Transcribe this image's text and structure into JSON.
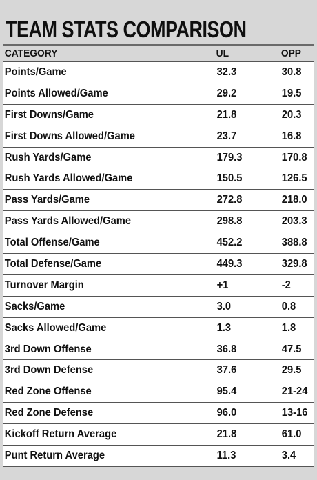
{
  "title": "TEAM STATS COMPARISON",
  "columns": [
    "CATEGORY",
    "UL",
    "OPP"
  ],
  "rows": [
    {
      "category": "Points/Game",
      "ul": "32.3",
      "opp": "30.8"
    },
    {
      "category": "Points Allowed/Game",
      "ul": "29.2",
      "opp": "19.5"
    },
    {
      "category": "First Downs/Game",
      "ul": "21.8",
      "opp": "20.3"
    },
    {
      "category": "First Downs Allowed/Game",
      "ul": "23.7",
      "opp": "16.8"
    },
    {
      "category": "Rush Yards/Game",
      "ul": "179.3",
      "opp": "170.8"
    },
    {
      "category": "Rush Yards Allowed/Game",
      "ul": "150.5",
      "opp": "126.5"
    },
    {
      "category": "Pass Yards/Game",
      "ul": "272.8",
      "opp": "218.0"
    },
    {
      "category": "Pass Yards Allowed/Game",
      "ul": "298.8",
      "opp": "203.3"
    },
    {
      "category": "Total Offense/Game",
      "ul": "452.2",
      "opp": "388.8"
    },
    {
      "category": "Total Defense/Game",
      "ul": "449.3",
      "opp": "329.8"
    },
    {
      "category": "Turnover Margin",
      "ul": "+1",
      "opp": "-2"
    },
    {
      "category": "Sacks/Game",
      "ul": "3.0",
      "opp": "0.8"
    },
    {
      "category": "Sacks Allowed/Game",
      "ul": "1.3",
      "opp": "1.8"
    },
    {
      "category": "3rd Down Offense",
      "ul": "36.8",
      "opp": "47.5"
    },
    {
      "category": "3rd Down Defense",
      "ul": "37.6",
      "opp": "29.5"
    },
    {
      "category": "Red Zone Offense",
      "ul": "95.4",
      "opp": "21-24"
    },
    {
      "category": "Red Zone Defense",
      "ul": "96.0",
      "opp": "13-16"
    },
    {
      "category": "Kickoff Return Average",
      "ul": "21.8",
      "opp": "61.0"
    },
    {
      "category": "Punt Return Average",
      "ul": "11.3",
      "opp": "3.4"
    }
  ]
}
